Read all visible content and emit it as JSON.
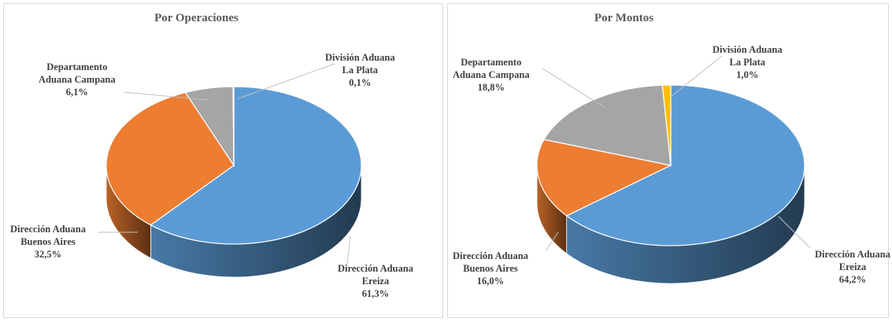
{
  "chart_data": [
    {
      "type": "pie",
      "title": "Por Operaciones",
      "slices": [
        {
          "line1": "Dirección Aduana",
          "line2": "Ereiza",
          "pct": "61,3%",
          "value": 61.3,
          "color": "#5b9bd5"
        },
        {
          "line1": "Dirección Aduana",
          "line2": "Buenos Aires",
          "pct": "32,5%",
          "value": 32.5,
          "color": "#ed7d31"
        },
        {
          "line1": "Departamento",
          "line2": "Aduana  Campana",
          "pct": "6,1%",
          "value": 6.1,
          "color": "#a5a5a5"
        },
        {
          "line1": "División Aduana",
          "line2": "La Plata",
          "pct": "0,1%",
          "value": 0.1,
          "color": "#ffc000"
        }
      ]
    },
    {
      "type": "pie",
      "title": "Por Montos",
      "slices": [
        {
          "line1": "Dirección Aduana",
          "line2": "Ereiza",
          "pct": "64,2%",
          "value": 64.2,
          "color": "#5b9bd5"
        },
        {
          "line1": "Dirección Aduana",
          "line2": "Buenos Aires",
          "pct": "16,0%",
          "value": 16.0,
          "color": "#ed7d31"
        },
        {
          "line1": "Departamento",
          "line2": "Aduana  Campana",
          "pct": "18,8%",
          "value": 18.8,
          "color": "#a5a5a5"
        },
        {
          "line1": "División Aduana",
          "line2": "La Plata",
          "pct": "1,0%",
          "value": 1.0,
          "color": "#ffc000"
        }
      ]
    }
  ]
}
